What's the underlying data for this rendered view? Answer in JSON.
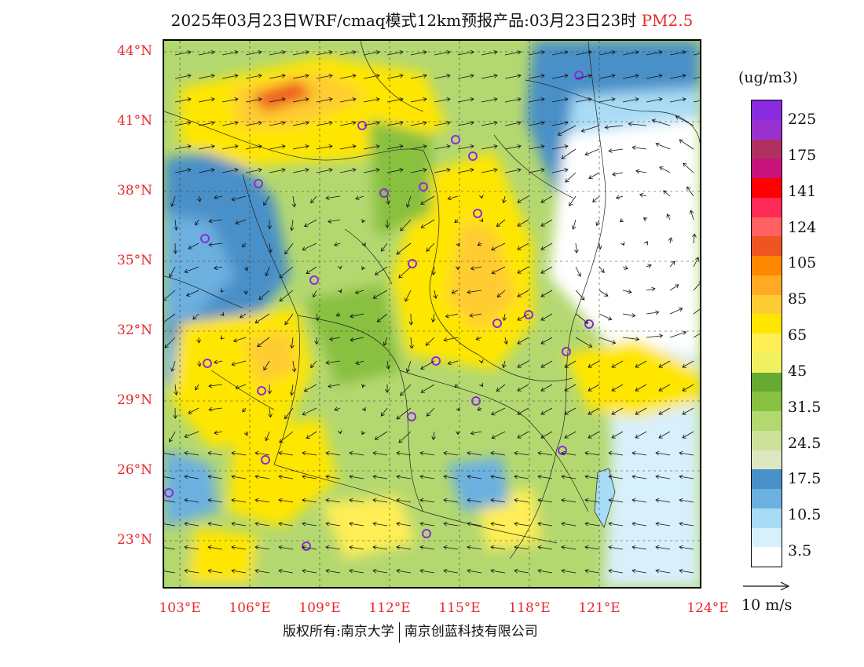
{
  "header": {
    "title_main": "2025年03月23日WRF/cmaq模式12km预报产品:03月23日23时",
    "title_variable": "PM2.5"
  },
  "axes": {
    "lat_labels": [
      "44°N",
      "41°N",
      "38°N",
      "35°N",
      "32°N",
      "29°N",
      "26°N",
      "23°N"
    ],
    "lon_labels": [
      "103°E",
      "106°E",
      "109°E",
      "112°E",
      "115°E",
      "118°E",
      "121°E",
      "124°E"
    ]
  },
  "legend": {
    "unit": "(ug/m3)",
    "labels": [
      "225",
      "175",
      "141",
      "124",
      "105",
      "85",
      "65",
      "45",
      "31.5",
      "24.5",
      "17.5",
      "10.5",
      "3.5"
    ],
    "colors": [
      "#8a2be2",
      "#9b30d0",
      "#b03060",
      "#c8147a",
      "#ff0000",
      "#ff2a55",
      "#ff6060",
      "#ee5522",
      "#ff8800",
      "#ffaa22",
      "#ffcc33",
      "#ffe600",
      "#ffee55",
      "#f0f060",
      "#66aa33",
      "#88c040",
      "#b4d870",
      "#cce09a",
      "#dde8c0",
      "#4a90c8",
      "#6cb0e0",
      "#a8dcf5",
      "#d8f0fb",
      "#ffffff"
    ],
    "wind_ref_label": "10 m/s"
  },
  "footer": {
    "copyright": "版权所有:南京大学",
    "company": "南京创蓝科技有限公司"
  }
}
